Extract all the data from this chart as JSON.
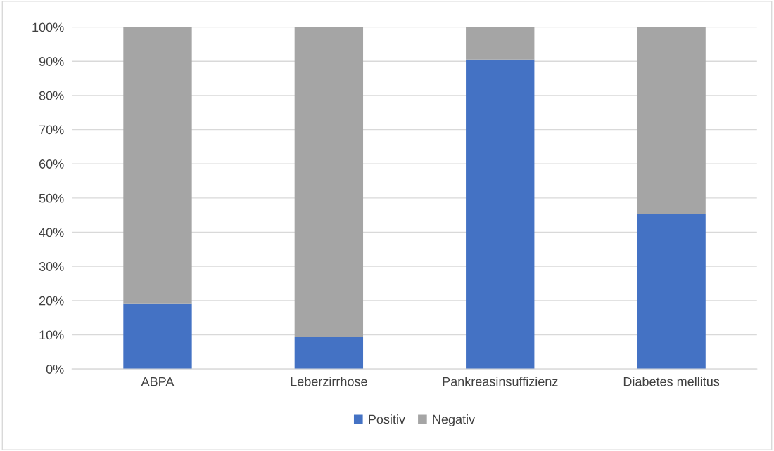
{
  "chart_data": {
    "type": "bar",
    "stacked": true,
    "categories": [
      "ABPA",
      "Leberzirrhose",
      "Pankreasinsuffizienz",
      "Diabetes mellitus"
    ],
    "series": [
      {
        "name": "Positiv",
        "color": "#4472c4",
        "values": [
          19,
          9.3,
          90.5,
          45.3
        ]
      },
      {
        "name": "Negativ",
        "color": "#a5a5a5",
        "values": [
          81,
          90.7,
          9.5,
          54.7
        ]
      }
    ],
    "ylim": [
      0,
      100
    ],
    "yticks": [
      {
        "value": 0,
        "label": "0%"
      },
      {
        "value": 10,
        "label": "10%"
      },
      {
        "value": 20,
        "label": "20%"
      },
      {
        "value": 30,
        "label": "30%"
      },
      {
        "value": 40,
        "label": "40%"
      },
      {
        "value": 50,
        "label": "50%"
      },
      {
        "value": 60,
        "label": "60%"
      },
      {
        "value": 70,
        "label": "70%"
      },
      {
        "value": 80,
        "label": "80%"
      },
      {
        "value": 90,
        "label": "90%"
      },
      {
        "value": 100,
        "label": "100%"
      }
    ],
    "grid": "y",
    "legend": "bottom"
  }
}
